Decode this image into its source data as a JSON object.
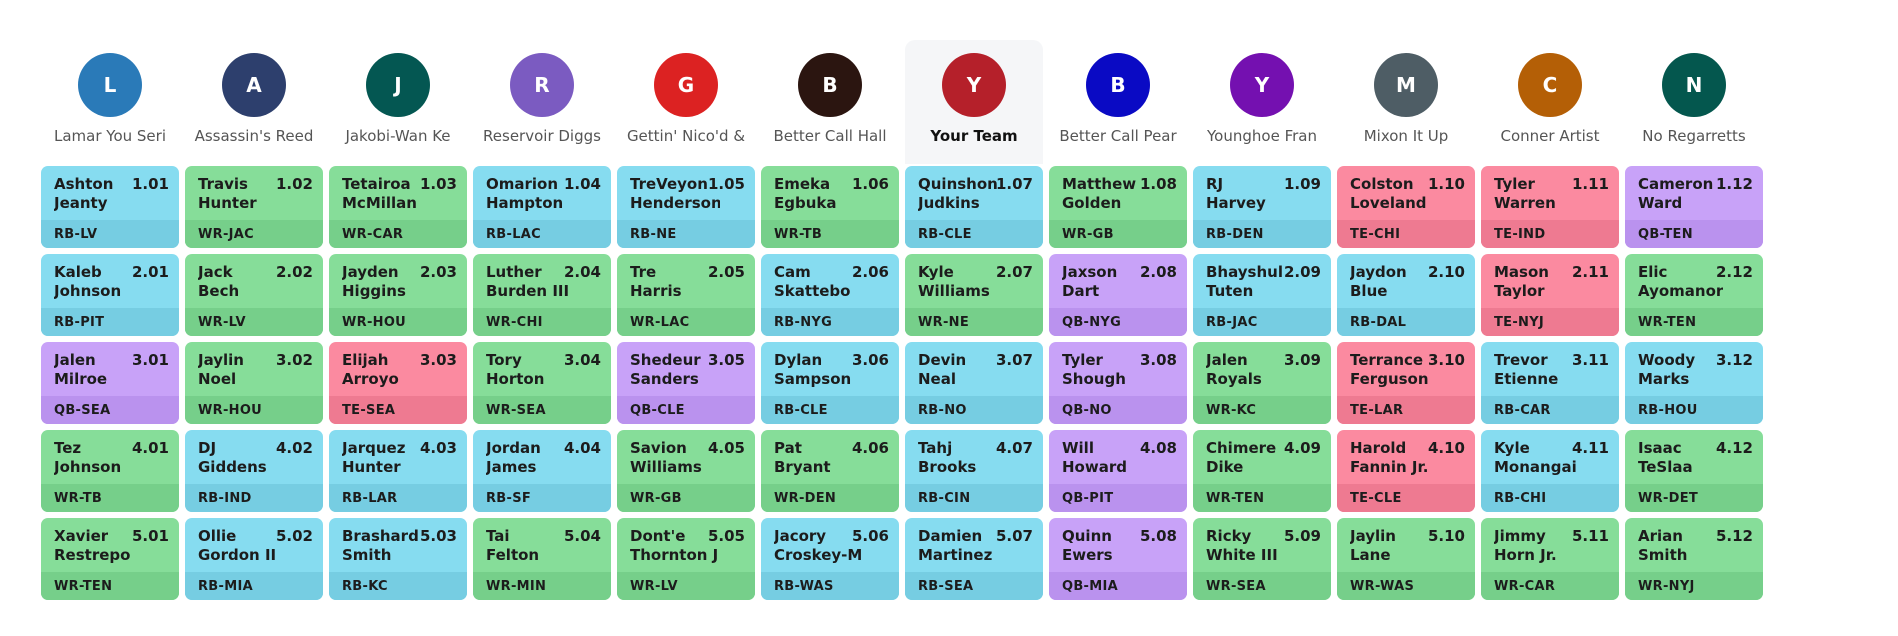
{
  "teams": [
    {
      "initial": "L",
      "name": "Lamar You Seri",
      "color": "#2a7ab8"
    },
    {
      "initial": "A",
      "name": "Assassin's Reed",
      "color": "#2d3f6d"
    },
    {
      "initial": "J",
      "name": "Jakobi-Wan Ke",
      "color": "#045752"
    },
    {
      "initial": "R",
      "name": "Reservoir Diggs",
      "color": "#7b5bc1"
    },
    {
      "initial": "G",
      "name": "Gettin' Nico'd &",
      "color": "#dc2222"
    },
    {
      "initial": "B",
      "name": "Better Call Hall",
      "color": "#2b1510"
    },
    {
      "initial": "Y",
      "name": "Your Team",
      "color": "#b5202a",
      "mine": true
    },
    {
      "initial": "B",
      "name": "Better Call Pear",
      "color": "#0a0ac4"
    },
    {
      "initial": "Y",
      "name": "Younghoe Fran",
      "color": "#7410b0"
    },
    {
      "initial": "M",
      "name": "Mixon It Up",
      "color": "#4e5d65"
    },
    {
      "initial": "C",
      "name": "Conner Artist",
      "color": "#b45f06"
    },
    {
      "initial": "N",
      "name": "No Regarretts",
      "color": "#04574e"
    }
  ],
  "rounds": [
    [
      {
        "first": "Ashton",
        "last": "Jeanty",
        "num": "1.01",
        "pos": "RB",
        "tag": "RB-LV"
      },
      {
        "first": "Travis",
        "last": "Hunter",
        "num": "1.02",
        "pos": "WR",
        "tag": "WR-JAC"
      },
      {
        "first": "Tetairoa",
        "last": "McMillan",
        "num": "1.03",
        "pos": "WR",
        "tag": "WR-CAR"
      },
      {
        "first": "Omarion",
        "last": "Hampton",
        "num": "1.04",
        "pos": "RB",
        "tag": "RB-LAC"
      },
      {
        "first": "TreVeyon",
        "last": "Henderson",
        "num": "1.05",
        "pos": "RB",
        "tag": "RB-NE"
      },
      {
        "first": "Emeka",
        "last": "Egbuka",
        "num": "1.06",
        "pos": "WR",
        "tag": "WR-TB"
      },
      {
        "first": "Quinshon",
        "last": "Judkins",
        "num": "1.07",
        "pos": "RB",
        "tag": "RB-CLE"
      },
      {
        "first": "Matthew",
        "last": "Golden",
        "num": "1.08",
        "pos": "WR",
        "tag": "WR-GB"
      },
      {
        "first": "RJ",
        "last": "Harvey",
        "num": "1.09",
        "pos": "RB",
        "tag": "RB-DEN"
      },
      {
        "first": "Colston",
        "last": "Loveland",
        "num": "1.10",
        "pos": "TE",
        "tag": "TE-CHI"
      },
      {
        "first": "Tyler",
        "last": "Warren",
        "num": "1.11",
        "pos": "TE",
        "tag": "TE-IND"
      },
      {
        "first": "Cameron",
        "last": "Ward",
        "num": "1.12",
        "pos": "QB",
        "tag": "QB-TEN"
      }
    ],
    [
      {
        "first": "Kaleb",
        "last": "Johnson",
        "num": "2.01",
        "pos": "RB",
        "tag": "RB-PIT"
      },
      {
        "first": "Jack",
        "last": "Bech",
        "num": "2.02",
        "pos": "WR",
        "tag": "WR-LV"
      },
      {
        "first": "Jayden",
        "last": "Higgins",
        "num": "2.03",
        "pos": "WR",
        "tag": "WR-HOU"
      },
      {
        "first": "Luther",
        "last": "Burden III",
        "num": "2.04",
        "pos": "WR",
        "tag": "WR-CHI"
      },
      {
        "first": "Tre",
        "last": "Harris",
        "num": "2.05",
        "pos": "WR",
        "tag": "WR-LAC"
      },
      {
        "first": "Cam",
        "last": "Skattebo",
        "num": "2.06",
        "pos": "RB",
        "tag": "RB-NYG"
      },
      {
        "first": "Kyle",
        "last": "Williams",
        "num": "2.07",
        "pos": "WR",
        "tag": "WR-NE"
      },
      {
        "first": "Jaxson",
        "last": "Dart",
        "num": "2.08",
        "pos": "QB",
        "tag": "QB-NYG"
      },
      {
        "first": "Bhayshul",
        "last": "Tuten",
        "num": "2.09",
        "pos": "RB",
        "tag": "RB-JAC"
      },
      {
        "first": "Jaydon",
        "last": "Blue",
        "num": "2.10",
        "pos": "RB",
        "tag": "RB-DAL"
      },
      {
        "first": "Mason",
        "last": "Taylor",
        "num": "2.11",
        "pos": "TE",
        "tag": "TE-NYJ"
      },
      {
        "first": "Elic",
        "last": "Ayomanor",
        "num": "2.12",
        "pos": "WR",
        "tag": "WR-TEN"
      }
    ],
    [
      {
        "first": "Jalen",
        "last": "Milroe",
        "num": "3.01",
        "pos": "QB",
        "tag": "QB-SEA"
      },
      {
        "first": "Jaylin",
        "last": "Noel",
        "num": "3.02",
        "pos": "WR",
        "tag": "WR-HOU"
      },
      {
        "first": "Elijah",
        "last": "Arroyo",
        "num": "3.03",
        "pos": "TE",
        "tag": "TE-SEA"
      },
      {
        "first": "Tory",
        "last": "Horton",
        "num": "3.04",
        "pos": "WR",
        "tag": "WR-SEA"
      },
      {
        "first": "Shedeur",
        "last": "Sanders",
        "num": "3.05",
        "pos": "QB",
        "tag": "QB-CLE"
      },
      {
        "first": "Dylan",
        "last": "Sampson",
        "num": "3.06",
        "pos": "RB",
        "tag": "RB-CLE"
      },
      {
        "first": "Devin",
        "last": "Neal",
        "num": "3.07",
        "pos": "RB",
        "tag": "RB-NO"
      },
      {
        "first": "Tyler",
        "last": "Shough",
        "num": "3.08",
        "pos": "QB",
        "tag": "QB-NO"
      },
      {
        "first": "Jalen",
        "last": "Royals",
        "num": "3.09",
        "pos": "WR",
        "tag": "WR-KC"
      },
      {
        "first": "Terrance",
        "last": "Ferguson",
        "num": "3.10",
        "pos": "TE",
        "tag": "TE-LAR"
      },
      {
        "first": "Trevor",
        "last": "Etienne",
        "num": "3.11",
        "pos": "RB",
        "tag": "RB-CAR"
      },
      {
        "first": "Woody",
        "last": "Marks",
        "num": "3.12",
        "pos": "RB",
        "tag": "RB-HOU"
      }
    ],
    [
      {
        "first": "Tez",
        "last": "Johnson",
        "num": "4.01",
        "pos": "WR",
        "tag": "WR-TB"
      },
      {
        "first": "DJ",
        "last": "Giddens",
        "num": "4.02",
        "pos": "RB",
        "tag": "RB-IND"
      },
      {
        "first": "Jarquez",
        "last": "Hunter",
        "num": "4.03",
        "pos": "RB",
        "tag": "RB-LAR"
      },
      {
        "first": "Jordan",
        "last": "James",
        "num": "4.04",
        "pos": "RB",
        "tag": "RB-SF"
      },
      {
        "first": "Savion",
        "last": "Williams",
        "num": "4.05",
        "pos": "WR",
        "tag": "WR-GB"
      },
      {
        "first": "Pat",
        "last": "Bryant",
        "num": "4.06",
        "pos": "WR",
        "tag": "WR-DEN"
      },
      {
        "first": "Tahj",
        "last": "Brooks",
        "num": "4.07",
        "pos": "RB",
        "tag": "RB-CIN"
      },
      {
        "first": "Will",
        "last": "Howard",
        "num": "4.08",
        "pos": "QB",
        "tag": "QB-PIT"
      },
      {
        "first": "Chimere",
        "last": "Dike",
        "num": "4.09",
        "pos": "WR",
        "tag": "WR-TEN"
      },
      {
        "first": "Harold",
        "last": "Fannin Jr.",
        "num": "4.10",
        "pos": "TE",
        "tag": "TE-CLE"
      },
      {
        "first": "Kyle",
        "last": "Monangai",
        "num": "4.11",
        "pos": "RB",
        "tag": "RB-CHI"
      },
      {
        "first": "Isaac",
        "last": "TeSlaa",
        "num": "4.12",
        "pos": "WR",
        "tag": "WR-DET"
      }
    ],
    [
      {
        "first": "Xavier",
        "last": "Restrepo",
        "num": "5.01",
        "pos": "WR",
        "tag": "WR-TEN"
      },
      {
        "first": "Ollie",
        "last": "Gordon II",
        "num": "5.02",
        "pos": "RB",
        "tag": "RB-MIA"
      },
      {
        "first": "Brashard",
        "last": "Smith",
        "num": "5.03",
        "pos": "RB",
        "tag": "RB-KC"
      },
      {
        "first": "Tai",
        "last": "Felton",
        "num": "5.04",
        "pos": "WR",
        "tag": "WR-MIN"
      },
      {
        "first": "Dont'e",
        "last": "Thornton J",
        "num": "5.05",
        "pos": "WR",
        "tag": "WR-LV"
      },
      {
        "first": "Jacory",
        "last": "Croskey-M",
        "num": "5.06",
        "pos": "RB",
        "tag": "RB-WAS"
      },
      {
        "first": "Damien",
        "last": "Martinez",
        "num": "5.07",
        "pos": "RB",
        "tag": "RB-SEA"
      },
      {
        "first": "Quinn",
        "last": "Ewers",
        "num": "5.08",
        "pos": "QB",
        "tag": "QB-MIA"
      },
      {
        "first": "Ricky",
        "last": "White III",
        "num": "5.09",
        "pos": "WR",
        "tag": "WR-SEA"
      },
      {
        "first": "Jaylin",
        "last": "Lane",
        "num": "5.10",
        "pos": "WR",
        "tag": "WR-WAS"
      },
      {
        "first": "Jimmy",
        "last": "Horn Jr.",
        "num": "5.11",
        "pos": "WR",
        "tag": "WR-CAR"
      },
      {
        "first": "Arian",
        "last": "Smith",
        "num": "5.12",
        "pos": "WR",
        "tag": "WR-NYJ"
      }
    ]
  ]
}
